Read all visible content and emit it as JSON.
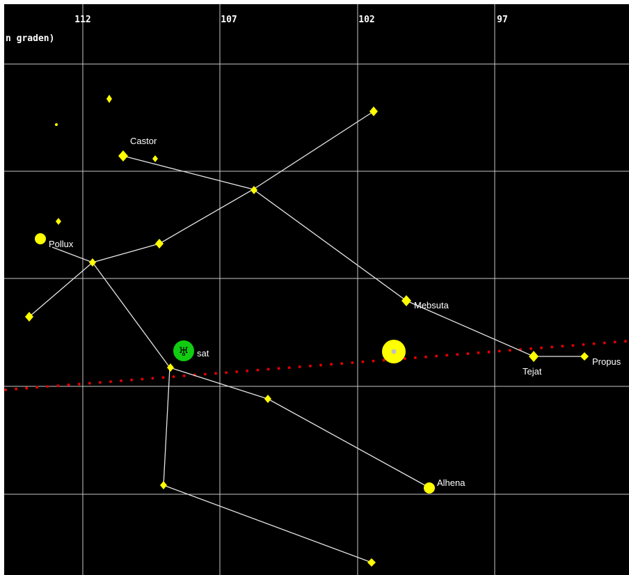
{
  "header": {
    "unit_text": "n graden)"
  },
  "axis": {
    "ticks": [
      "112",
      "107",
      "102",
      "97"
    ]
  },
  "labels": {
    "castor": "Castor",
    "pollux": "Pollux",
    "mebsuta": "Mebsuta",
    "tejat": "Tejat",
    "propus": "Propus",
    "alhena": "Alhena",
    "planet_label": "sat"
  },
  "planet": {
    "symbol": "♅"
  },
  "colors": {
    "background": "#000000",
    "grid": "#c8c8c8",
    "star": "#ffff00",
    "ecliptic": "#e00000",
    "planet": "#11cc11",
    "sun": "#ffff00",
    "line": "#e6e6e6"
  }
}
